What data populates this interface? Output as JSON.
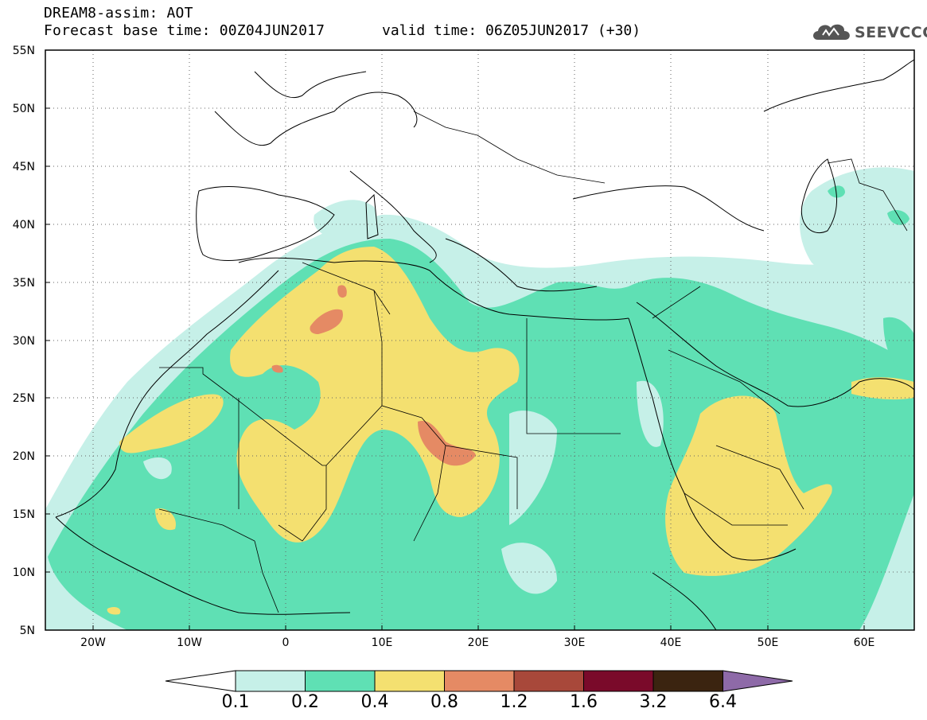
{
  "header": {
    "line1": "DREAM8-assim: AOT",
    "line2a": "Forecast base time: 00Z04JUN2017",
    "line2b": "valid time: 06Z05JUN2017 (+30)"
  },
  "logo": {
    "text": "SEEVCCC",
    "icon": "cloud-icon"
  },
  "map": {
    "lon_range": [
      -25,
      65
    ],
    "lat_range": [
      5,
      55
    ],
    "lon_ticks": [
      {
        "label": "20W"
      },
      {
        "label": "10W"
      },
      {
        "label": "0"
      },
      {
        "label": "10E"
      },
      {
        "label": "20E"
      },
      {
        "label": "30E"
      },
      {
        "label": "40E"
      },
      {
        "label": "50E"
      },
      {
        "label": "60E"
      }
    ],
    "lat_ticks": [
      {
        "label": "55N"
      },
      {
        "label": "50N"
      },
      {
        "label": "45N"
      },
      {
        "label": "40N"
      },
      {
        "label": "35N"
      },
      {
        "label": "30N"
      },
      {
        "label": "25N"
      },
      {
        "label": "20N"
      },
      {
        "label": "15N"
      },
      {
        "label": "10N"
      },
      {
        "label": "5N"
      }
    ],
    "grid": "dotted"
  },
  "colorbar": {
    "labels": [
      "0.1",
      "0.2",
      "0.4",
      "0.8",
      "1.2",
      "1.6",
      "3.2",
      "6.4"
    ],
    "colors": [
      "#ffffff",
      "#c6f0e8",
      "#5fe0b4",
      "#f4e070",
      "#e58a64",
      "#a8483a",
      "#7a0a2a",
      "#3b2410",
      "#8e6aa8"
    ]
  }
}
